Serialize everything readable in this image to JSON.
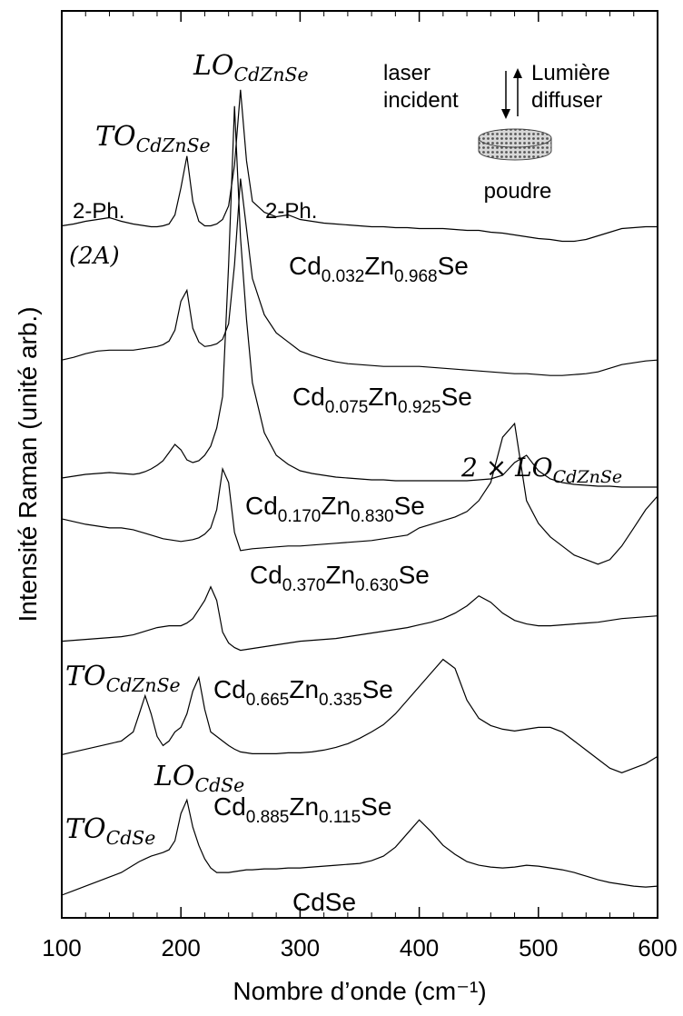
{
  "chart_data": {
    "type": "line",
    "x_label": "Nombre d’onde (cm⁻¹)",
    "y_label": "Intensité Raman (unité arb.)",
    "xlim": [
      100,
      600
    ],
    "xticks": [
      100,
      200,
      300,
      400,
      500,
      600
    ],
    "ylim": [
      0,
      100
    ],
    "x": [
      100,
      110,
      120,
      130,
      140,
      150,
      160,
      165,
      170,
      175,
      180,
      185,
      190,
      195,
      200,
      205,
      210,
      215,
      220,
      225,
      230,
      235,
      240,
      245,
      250,
      255,
      260,
      270,
      280,
      290,
      300,
      310,
      320,
      330,
      340,
      350,
      360,
      370,
      380,
      390,
      400,
      410,
      420,
      430,
      440,
      450,
      460,
      470,
      480,
      490,
      500,
      510,
      520,
      530,
      540,
      550,
      560,
      570,
      580,
      590,
      600
    ],
    "series": [
      {
        "name": "Cd0.032Zn0.968Se",
        "color": "#000000",
        "values": [
          76.3,
          76.5,
          76.8,
          77.0,
          77.2,
          76.8,
          76.5,
          76.4,
          76.3,
          76.2,
          76.2,
          76.3,
          76.5,
          77.5,
          80.5,
          84.0,
          79.0,
          76.8,
          76.3,
          76.3,
          76.5,
          77.0,
          78.5,
          83.0,
          91.3,
          83.5,
          79.0,
          77.8,
          77.3,
          77.5,
          77.0,
          76.8,
          76.6,
          76.5,
          76.4,
          76.3,
          76.2,
          76.2,
          76.1,
          76.1,
          76.0,
          76.0,
          76.0,
          75.9,
          75.8,
          75.8,
          75.6,
          75.5,
          75.3,
          75.1,
          74.9,
          74.8,
          74.6,
          74.6,
          74.8,
          75.2,
          75.6,
          76.0,
          76.1,
          76.2,
          76.2
        ]
      },
      {
        "name": "Cd0.075Zn0.925Se",
        "color": "#000000",
        "values": [
          61.5,
          61.8,
          62.2,
          62.5,
          62.6,
          62.6,
          62.6,
          62.7,
          62.8,
          62.9,
          63.0,
          63.2,
          63.6,
          64.8,
          68.0,
          69.2,
          65.0,
          63.5,
          63.0,
          63.1,
          63.3,
          63.8,
          65.5,
          72.0,
          81.5,
          76.0,
          70.5,
          66.5,
          64.5,
          63.5,
          62.5,
          62.0,
          61.6,
          61.3,
          61.1,
          61.0,
          60.9,
          60.8,
          60.8,
          60.8,
          60.8,
          60.7,
          60.6,
          60.5,
          60.4,
          60.3,
          60.2,
          60.1,
          60.0,
          60.0,
          59.9,
          59.8,
          59.8,
          59.9,
          60.0,
          60.2,
          60.6,
          61.0,
          61.2,
          61.4,
          61.5
        ]
      },
      {
        "name": "Cd0.170Zn0.830Se",
        "color": "#000000",
        "values": [
          48.5,
          48.7,
          48.9,
          49.0,
          49.1,
          49.0,
          48.9,
          49.0,
          49.2,
          49.5,
          49.9,
          50.4,
          51.3,
          52.2,
          51.6,
          50.5,
          50.2,
          50.4,
          51.0,
          52.0,
          54.0,
          57.5,
          72.0,
          89.5,
          75.0,
          66.0,
          59.0,
          53.5,
          51.0,
          50.0,
          49.3,
          49.0,
          48.8,
          48.6,
          48.5,
          48.4,
          48.3,
          48.3,
          48.2,
          48.2,
          48.2,
          48.2,
          48.2,
          48.2,
          48.2,
          48.3,
          48.4,
          48.8,
          50.2,
          51.0,
          49.3,
          48.4,
          48.0,
          47.8,
          47.7,
          47.6,
          47.6,
          47.5,
          47.5,
          47.5,
          47.5
        ]
      },
      {
        "name": "Cd0.370Zn0.630Se",
        "color": "#000000",
        "values": [
          44.0,
          43.7,
          43.4,
          43.2,
          43.0,
          43.0,
          42.8,
          42.6,
          42.4,
          42.2,
          42.0,
          41.8,
          41.7,
          41.6,
          41.5,
          41.6,
          41.7,
          41.9,
          42.3,
          43.0,
          45.0,
          49.5,
          48.0,
          42.5,
          40.5,
          40.6,
          40.7,
          40.8,
          40.9,
          41.0,
          41.0,
          41.1,
          41.2,
          41.3,
          41.4,
          41.5,
          41.6,
          41.8,
          42.0,
          42.2,
          43.0,
          43.4,
          43.8,
          44.2,
          44.8,
          46.0,
          48.0,
          53.0,
          54.5,
          46.0,
          43.5,
          42.0,
          41.0,
          40.0,
          39.5,
          39.0,
          39.5,
          41.0,
          43.0,
          45.0,
          46.5
        ]
      },
      {
        "name": "Cd0.665Zn0.335Se",
        "color": "#000000",
        "values": [
          30.5,
          30.6,
          30.7,
          30.8,
          30.9,
          31.0,
          31.2,
          31.4,
          31.6,
          31.8,
          32.0,
          32.1,
          32.2,
          32.2,
          32.2,
          32.5,
          33.0,
          34.0,
          35.0,
          36.5,
          35.0,
          31.5,
          30.3,
          29.8,
          29.5,
          29.6,
          29.7,
          29.9,
          30.1,
          30.3,
          30.5,
          30.6,
          30.7,
          30.8,
          31.0,
          31.2,
          31.4,
          31.6,
          31.8,
          32.0,
          32.3,
          32.6,
          33.0,
          33.6,
          34.4,
          35.5,
          34.8,
          33.6,
          32.8,
          32.4,
          32.2,
          32.2,
          32.3,
          32.4,
          32.5,
          32.6,
          32.8,
          33.0,
          33.1,
          33.2,
          33.3
        ]
      },
      {
        "name": "Cd0.885Zn0.115Se",
        "color": "#000000",
        "values": [
          18.0,
          18.3,
          18.6,
          18.9,
          19.2,
          19.5,
          20.5,
          22.5,
          24.5,
          22.5,
          20.0,
          19.0,
          19.5,
          20.5,
          21.0,
          22.5,
          25.0,
          26.5,
          23.0,
          20.5,
          20.0,
          19.5,
          19.0,
          18.6,
          18.3,
          18.2,
          18.1,
          18.1,
          18.1,
          18.2,
          18.2,
          18.3,
          18.5,
          18.8,
          19.2,
          19.8,
          20.5,
          21.3,
          22.5,
          24.0,
          25.5,
          27.0,
          28.5,
          27.5,
          24.0,
          22.0,
          21.2,
          20.8,
          20.6,
          20.8,
          21.0,
          21.0,
          20.5,
          19.5,
          18.5,
          17.5,
          16.5,
          16.0,
          16.5,
          17.0,
          17.8
        ]
      },
      {
        "name": "CdSe",
        "color": "#000000",
        "values": [
          2.5,
          3.0,
          3.5,
          4.0,
          4.5,
          5.0,
          5.8,
          6.2,
          6.5,
          6.8,
          7.0,
          7.2,
          7.5,
          8.5,
          11.5,
          13.0,
          10.0,
          8.0,
          6.5,
          5.5,
          5.0,
          5.0,
          5.0,
          5.1,
          5.2,
          5.3,
          5.3,
          5.4,
          5.4,
          5.5,
          5.5,
          5.6,
          5.7,
          5.8,
          5.9,
          6.0,
          6.3,
          6.8,
          7.8,
          9.3,
          10.8,
          9.5,
          8.0,
          7.0,
          6.2,
          5.8,
          5.6,
          5.5,
          5.6,
          5.8,
          5.7,
          5.5,
          5.3,
          5.0,
          4.6,
          4.2,
          3.9,
          3.7,
          3.5,
          3.4,
          3.5
        ]
      }
    ],
    "annotations": [
      {
        "text": "LO",
        "sub": "CdZnSe"
      },
      {
        "text": "TO",
        "sub": "CdZnSe"
      },
      {
        "text": "2-Ph."
      },
      {
        "text": "2-Ph."
      },
      {
        "text": "(2A)"
      },
      {
        "text": "2 × LO",
        "sub": "CdZnSe"
      },
      {
        "text": "TO",
        "sub": "CdZnSe"
      },
      {
        "text": "LO",
        "sub": "CdSe"
      },
      {
        "text": "TO",
        "sub": "CdSe"
      }
    ],
    "inset": {
      "left": [
        "laser",
        "incident"
      ],
      "right": [
        "Lumière",
        "diffuser"
      ],
      "sample": "poudre"
    }
  }
}
